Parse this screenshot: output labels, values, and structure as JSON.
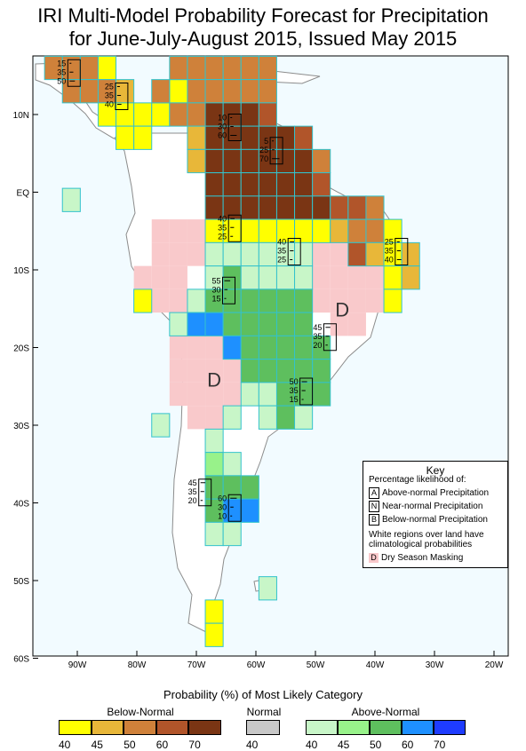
{
  "title_line1": "IRI Multi-Model Probability Forecast for Precipitation",
  "title_line2": "for June-July-August 2015, Issued May 2015",
  "lat_labels": [
    "10N",
    "EQ",
    "10S",
    "20S",
    "30S",
    "40S",
    "50S",
    "60S"
  ],
  "lon_labels": [
    "90W",
    "80W",
    "70W",
    "60W",
    "50W",
    "40W",
    "30W",
    "20W"
  ],
  "region_labels": [
    {
      "label": "D",
      "lon": -45.5,
      "lat": -16
    },
    {
      "label": "D",
      "lon": -67,
      "lat": -25
    }
  ],
  "probability_labels": [
    {
      "lon": -91,
      "lat": 15,
      "values": [
        "15",
        "35",
        "50"
      ]
    },
    {
      "lon": -83,
      "lat": 12,
      "values": [
        "25",
        "35",
        "40"
      ]
    },
    {
      "lon": -64,
      "lat": 8,
      "values": [
        "10",
        "30",
        "60"
      ]
    },
    {
      "lon": -57,
      "lat": 5,
      "values": [
        "5",
        "25",
        "70"
      ]
    },
    {
      "lon": -64,
      "lat": -5,
      "values": [
        "40",
        "35",
        "25"
      ]
    },
    {
      "lon": -54,
      "lat": -8,
      "values": [
        "40",
        "35",
        "25"
      ]
    },
    {
      "lon": -36,
      "lat": -8,
      "values": [
        "25",
        "35",
        "40"
      ]
    },
    {
      "lon": -65,
      "lat": -13,
      "values": [
        "55",
        "30",
        "15"
      ]
    },
    {
      "lon": -48,
      "lat": -19,
      "values": [
        "45",
        "35",
        "20"
      ]
    },
    {
      "lon": -52,
      "lat": -26,
      "values": [
        "50",
        "35",
        "15"
      ]
    },
    {
      "lon": -69,
      "lat": -39,
      "values": [
        "45",
        "35",
        "20"
      ]
    },
    {
      "lon": -64,
      "lat": -41,
      "values": [
        "60",
        "30",
        "10"
      ]
    }
  ],
  "legend": {
    "title": "Probability (%) of Most Likely Category",
    "below_label": "Below-Normal",
    "normal_label": "Normal",
    "above_label": "Above-Normal",
    "below": [
      {
        "value": "40",
        "color": "#ffff00"
      },
      {
        "value": "45",
        "color": "#e8b739"
      },
      {
        "value": "50",
        "color": "#cf813a"
      },
      {
        "value": "60",
        "color": "#b1552a"
      },
      {
        "value": "70",
        "color": "#7a3514"
      }
    ],
    "normal": [
      {
        "value": "40",
        "color": "#c8c8c8"
      }
    ],
    "above": [
      {
        "value": "40",
        "color": "#c8f6c8"
      },
      {
        "value": "45",
        "color": "#98f28a"
      },
      {
        "value": "50",
        "color": "#5ebf5e"
      },
      {
        "value": "60",
        "color": "#1e90ff"
      },
      {
        "value": "70",
        "color": "#1e3cff"
      }
    ]
  },
  "key": {
    "title": "Key",
    "subtitle": "Percentage likelihood of:",
    "a_letter": "A",
    "a_text": "Above-normal Precipitation",
    "n_letter": "N",
    "n_text": "Near-normal Precipitation",
    "b_letter": "B",
    "b_text": "Below-normal Precipitation",
    "white_note_1": "White regions over land have",
    "white_note_2": "climatological probabilities",
    "dry_letter": "D",
    "dry_text": "Dry Season Masking"
  },
  "colors": {
    "ocean": "#f2fbff",
    "land": "#ffffff",
    "dry": "#f9c9cb",
    "cell_border": "#33c2cc",
    "coast": "#8c8c8c"
  },
  "cells": [
    {
      "lon": -94,
      "lat": 16,
      "c": "b50"
    },
    {
      "lon": -91,
      "lat": 16,
      "c": "b50"
    },
    {
      "lon": -88,
      "lat": 16,
      "c": "b50"
    },
    {
      "lon": -85,
      "lat": 16,
      "c": "b40"
    },
    {
      "lon": -91,
      "lat": 13,
      "c": "b50"
    },
    {
      "lon": -88,
      "lat": 13,
      "c": "b50"
    },
    {
      "lon": -85,
      "lat": 13,
      "c": "b50"
    },
    {
      "lon": -82,
      "lat": 13,
      "c": "b45"
    },
    {
      "lon": -85,
      "lat": 10,
      "c": "b40"
    },
    {
      "lon": -82,
      "lat": 10,
      "c": "b40"
    },
    {
      "lon": -79,
      "lat": 10,
      "c": "b40"
    },
    {
      "lon": -82,
      "lat": 7,
      "c": "b40"
    },
    {
      "lon": -79,
      "lat": 7,
      "c": "b40"
    },
    {
      "lon": -76,
      "lat": 10,
      "c": "b40"
    },
    {
      "lon": -73,
      "lat": 13,
      "c": "b40"
    },
    {
      "lon": -73,
      "lat": 16,
      "c": "b50"
    },
    {
      "lon": -70,
      "lat": 16,
      "c": "b50"
    },
    {
      "lon": -67,
      "lat": 16,
      "c": "b50"
    },
    {
      "lon": -64,
      "lat": 16,
      "c": "b50"
    },
    {
      "lon": -61,
      "lat": 16,
      "c": "b50"
    },
    {
      "lon": -58,
      "lat": 16,
      "c": "b50"
    },
    {
      "lon": -76,
      "lat": 13,
      "c": "b50"
    },
    {
      "lon": -70,
      "lat": 13,
      "c": "b50"
    },
    {
      "lon": -67,
      "lat": 13,
      "c": "b50"
    },
    {
      "lon": -64,
      "lat": 13,
      "c": "b50"
    },
    {
      "lon": -61,
      "lat": 13,
      "c": "b50"
    },
    {
      "lon": -58,
      "lat": 13,
      "c": "b50"
    },
    {
      "lon": -73,
      "lat": 10,
      "c": "b50"
    },
    {
      "lon": -70,
      "lat": 10,
      "c": "b50"
    },
    {
      "lon": -67,
      "lat": 10,
      "c": "b70"
    },
    {
      "lon": -64,
      "lat": 10,
      "c": "b70"
    },
    {
      "lon": -61,
      "lat": 10,
      "c": "b70"
    },
    {
      "lon": -58,
      "lat": 10,
      "c": "b60"
    },
    {
      "lon": -70,
      "lat": 7,
      "c": "b45"
    },
    {
      "lon": -67,
      "lat": 7,
      "c": "b70"
    },
    {
      "lon": -64,
      "lat": 7,
      "c": "b70"
    },
    {
      "lon": -61,
      "lat": 7,
      "c": "b70"
    },
    {
      "lon": -58,
      "lat": 7,
      "c": "b70"
    },
    {
      "lon": -55,
      "lat": 7,
      "c": "b70"
    },
    {
      "lon": -52,
      "lat": 7,
      "c": "b60"
    },
    {
      "lon": -70,
      "lat": 4,
      "c": "b45"
    },
    {
      "lon": -67,
      "lat": 4,
      "c": "b70"
    },
    {
      "lon": -64,
      "lat": 4,
      "c": "b70"
    },
    {
      "lon": -61,
      "lat": 4,
      "c": "b70"
    },
    {
      "lon": -58,
      "lat": 4,
      "c": "b70"
    },
    {
      "lon": -55,
      "lat": 4,
      "c": "b70"
    },
    {
      "lon": -52,
      "lat": 4,
      "c": "b70"
    },
    {
      "lon": -49,
      "lat": 4,
      "c": "b50"
    },
    {
      "lon": -67,
      "lat": 1,
      "c": "b70"
    },
    {
      "lon": -64,
      "lat": 1,
      "c": "b70"
    },
    {
      "lon": -61,
      "lat": 1,
      "c": "b70"
    },
    {
      "lon": -58,
      "lat": 1,
      "c": "b70"
    },
    {
      "lon": -55,
      "lat": 1,
      "c": "b70"
    },
    {
      "lon": -52,
      "lat": 1,
      "c": "b70"
    },
    {
      "lon": -49,
      "lat": 1,
      "c": "b60"
    },
    {
      "lon": -67,
      "lat": -2,
      "c": "b70"
    },
    {
      "lon": -64,
      "lat": -2,
      "c": "b70"
    },
    {
      "lon": -61,
      "lat": -2,
      "c": "b70"
    },
    {
      "lon": -58,
      "lat": -2,
      "c": "b70"
    },
    {
      "lon": -55,
      "lat": -2,
      "c": "b70"
    },
    {
      "lon": -52,
      "lat": -2,
      "c": "b70"
    },
    {
      "lon": -49,
      "lat": -2,
      "c": "b70"
    },
    {
      "lon": -46,
      "lat": -2,
      "c": "b60"
    },
    {
      "lon": -43,
      "lat": -2,
      "c": "b60"
    },
    {
      "lon": -40,
      "lat": -2,
      "c": "b50"
    },
    {
      "lon": -67,
      "lat": -5,
      "c": "b40"
    },
    {
      "lon": -64,
      "lat": -5,
      "c": "b40"
    },
    {
      "lon": -61,
      "lat": -5,
      "c": "b40"
    },
    {
      "lon": -58,
      "lat": -5,
      "c": "b40"
    },
    {
      "lon": -55,
      "lat": -5,
      "c": "b40"
    },
    {
      "lon": -52,
      "lat": -5,
      "c": "b40"
    },
    {
      "lon": -49,
      "lat": -5,
      "c": "b40"
    },
    {
      "lon": -46,
      "lat": -5,
      "c": "b45"
    },
    {
      "lon": -43,
      "lat": -5,
      "c": "b50"
    },
    {
      "lon": -40,
      "lat": -5,
      "c": "b50"
    },
    {
      "lon": -37,
      "lat": -5,
      "c": "b40"
    },
    {
      "lon": -43,
      "lat": -8,
      "c": "b60"
    },
    {
      "lon": -40,
      "lat": -8,
      "c": "b45"
    },
    {
      "lon": -37,
      "lat": -8,
      "c": "b40"
    },
    {
      "lon": -34,
      "lat": -8,
      "c": "b45"
    },
    {
      "lon": -37,
      "lat": -11,
      "c": "b40"
    },
    {
      "lon": -34,
      "lat": -11,
      "c": "b45"
    },
    {
      "lon": -37,
      "lat": -14,
      "c": "b40"
    },
    {
      "lon": -79,
      "lat": -14,
      "c": "b40"
    },
    {
      "lon": -67,
      "lat": -8,
      "c": "a40"
    },
    {
      "lon": -64,
      "lat": -8,
      "c": "a40"
    },
    {
      "lon": -61,
      "lat": -8,
      "c": "a40"
    },
    {
      "lon": -58,
      "lat": -8,
      "c": "a40"
    },
    {
      "lon": -55,
      "lat": -8,
      "c": "a40"
    },
    {
      "lon": -52,
      "lat": -8,
      "c": "a40"
    },
    {
      "lon": -67,
      "lat": -11,
      "c": "a40"
    },
    {
      "lon": -64,
      "lat": -11,
      "c": "a50"
    },
    {
      "lon": -61,
      "lat": -11,
      "c": "a40"
    },
    {
      "lon": -58,
      "lat": -11,
      "c": "a40"
    },
    {
      "lon": -55,
      "lat": -11,
      "c": "a40"
    },
    {
      "lon": -52,
      "lat": -11,
      "c": "a40"
    },
    {
      "lon": -70,
      "lat": -14,
      "c": "a40"
    },
    {
      "lon": -67,
      "lat": -14,
      "c": "a50"
    },
    {
      "lon": -64,
      "lat": -14,
      "c": "a50"
    },
    {
      "lon": -61,
      "lat": -14,
      "c": "a50"
    },
    {
      "lon": -58,
      "lat": -14,
      "c": "a50"
    },
    {
      "lon": -55,
      "lat": -14,
      "c": "a50"
    },
    {
      "lon": -52,
      "lat": -14,
      "c": "a50"
    },
    {
      "lon": -73,
      "lat": -17,
      "c": "a40"
    },
    {
      "lon": -70,
      "lat": -17,
      "c": "a60"
    },
    {
      "lon": -67,
      "lat": -17,
      "c": "a60"
    },
    {
      "lon": -64,
      "lat": -17,
      "c": "a50"
    },
    {
      "lon": -61,
      "lat": -17,
      "c": "a50"
    },
    {
      "lon": -58,
      "lat": -17,
      "c": "a50"
    },
    {
      "lon": -55,
      "lat": -17,
      "c": "a50"
    },
    {
      "lon": -52,
      "lat": -17,
      "c": "a50"
    },
    {
      "lon": -64,
      "lat": -20,
      "c": "a60"
    },
    {
      "lon": -61,
      "lat": -20,
      "c": "a50"
    },
    {
      "lon": -58,
      "lat": -20,
      "c": "a50"
    },
    {
      "lon": -55,
      "lat": -20,
      "c": "a50"
    },
    {
      "lon": -52,
      "lat": -20,
      "c": "a50"
    },
    {
      "lon": -49,
      "lat": -20,
      "c": "a50"
    },
    {
      "lon": -61,
      "lat": -23,
      "c": "a50"
    },
    {
      "lon": -58,
      "lat": -23,
      "c": "a50"
    },
    {
      "lon": -55,
      "lat": -23,
      "c": "a50"
    },
    {
      "lon": -52,
      "lat": -23,
      "c": "a50"
    },
    {
      "lon": -49,
      "lat": -23,
      "c": "a50"
    },
    {
      "lon": -61,
      "lat": -26,
      "c": "a40"
    },
    {
      "lon": -58,
      "lat": -26,
      "c": "a40"
    },
    {
      "lon": -55,
      "lat": -26,
      "c": "a50"
    },
    {
      "lon": -52,
      "lat": -26,
      "c": "a50"
    },
    {
      "lon": -49,
      "lat": -26,
      "c": "a50"
    },
    {
      "lon": -64,
      "lat": -29,
      "c": "a40"
    },
    {
      "lon": -58,
      "lat": -29,
      "c": "a40"
    },
    {
      "lon": -55,
      "lat": -29,
      "c": "a50"
    },
    {
      "lon": -52,
      "lat": -29,
      "c": "a40"
    },
    {
      "lon": -67,
      "lat": -32,
      "c": "a40"
    },
    {
      "lon": -76,
      "lat": -30,
      "c": "a40"
    },
    {
      "lon": -67,
      "lat": -35,
      "c": "a45"
    },
    {
      "lon": -64,
      "lat": -35,
      "c": "a40"
    },
    {
      "lon": -67,
      "lat": -38,
      "c": "a50"
    },
    {
      "lon": -64,
      "lat": -38,
      "c": "a50"
    },
    {
      "lon": -61,
      "lat": -38,
      "c": "a50"
    },
    {
      "lon": -67,
      "lat": -41,
      "c": "a50"
    },
    {
      "lon": -64,
      "lat": -41,
      "c": "a60"
    },
    {
      "lon": -61,
      "lat": -41,
      "c": "a60"
    },
    {
      "lon": -67,
      "lat": -44,
      "c": "a40"
    },
    {
      "lon": -64,
      "lat": -44,
      "c": "a40"
    },
    {
      "lon": -58,
      "lat": -51,
      "c": "a40"
    },
    {
      "lon": -67,
      "lat": -54,
      "c": "b40"
    },
    {
      "lon": -67,
      "lat": -57,
      "c": "b40"
    },
    {
      "lon": -91,
      "lat": -1,
      "c": "a40"
    }
  ],
  "dry_cells": [
    {
      "lon": -76,
      "lat": -5
    },
    {
      "lon": -73,
      "lat": -5
    },
    {
      "lon": -70,
      "lat": -5
    },
    {
      "lon": -76,
      "lat": -8
    },
    {
      "lon": -73,
      "lat": -8
    },
    {
      "lon": -70,
      "lat": -8
    },
    {
      "lon": -79,
      "lat": -11
    },
    {
      "lon": -76,
      "lat": -11
    },
    {
      "lon": -73,
      "lat": -11
    },
    {
      "lon": -76,
      "lat": -14
    },
    {
      "lon": -73,
      "lat": -14
    },
    {
      "lon": -73,
      "lat": -20
    },
    {
      "lon": -70,
      "lat": -20
    },
    {
      "lon": -67,
      "lat": -20
    },
    {
      "lon": -73,
      "lat": -23
    },
    {
      "lon": -70,
      "lat": -23
    },
    {
      "lon": -67,
      "lat": -23
    },
    {
      "lon": -64,
      "lat": -23
    },
    {
      "lon": -73,
      "lat": -26
    },
    {
      "lon": -70,
      "lat": -26
    },
    {
      "lon": -67,
      "lat": -26
    },
    {
      "lon": -64,
      "lat": -26
    },
    {
      "lon": -70,
      "lat": -29
    },
    {
      "lon": -67,
      "lat": -29
    },
    {
      "lon": -49,
      "lat": -8
    },
    {
      "lon": -46,
      "lat": -8
    },
    {
      "lon": -49,
      "lat": -11
    },
    {
      "lon": -46,
      "lat": -11
    },
    {
      "lon": -43,
      "lat": -11
    },
    {
      "lon": -40,
      "lat": -11
    },
    {
      "lon": -49,
      "lat": -14
    },
    {
      "lon": -46,
      "lat": -14
    },
    {
      "lon": -43,
      "lat": -14
    },
    {
      "lon": -40,
      "lat": -14
    },
    {
      "lon": -46,
      "lat": -17
    },
    {
      "lon": -43,
      "lat": -17
    }
  ]
}
